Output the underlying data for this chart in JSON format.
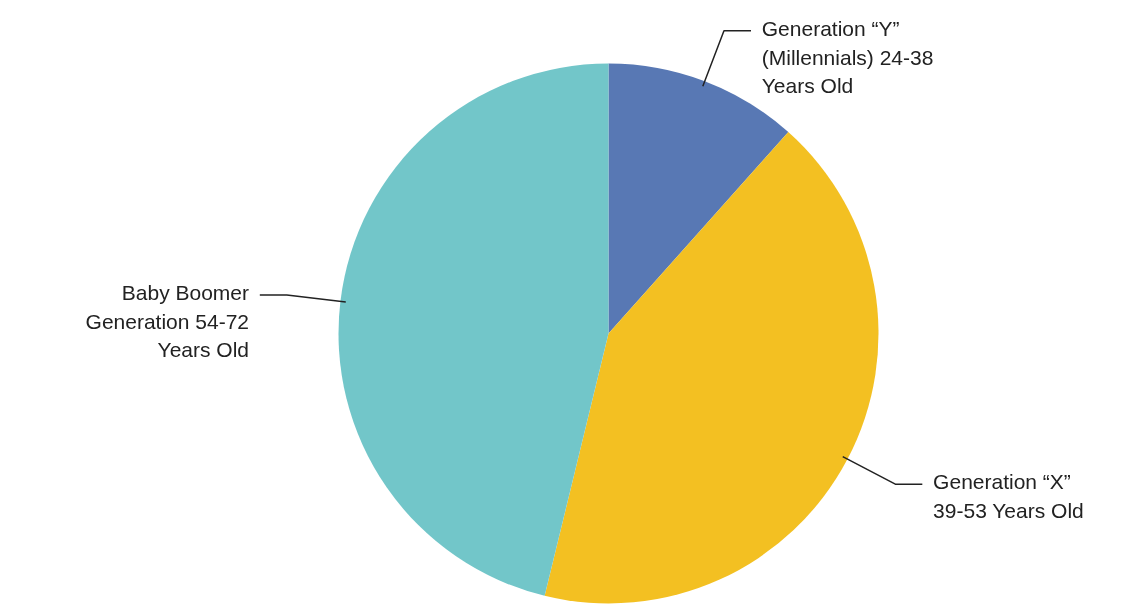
{
  "chart_data": {
    "type": "pie",
    "categories": [
      "Generation “Y” (Millennials) 24-38 Years Old",
      "Generation “X” 39-53 Years Old",
      "Baby Boomer Generation 54-72 Years Old"
    ],
    "values": [
      11.6,
      42.2,
      46.2
    ],
    "colors": [
      "#5878b4",
      "#f3c022",
      "#72c6c9"
    ],
    "legend": false
  }
}
